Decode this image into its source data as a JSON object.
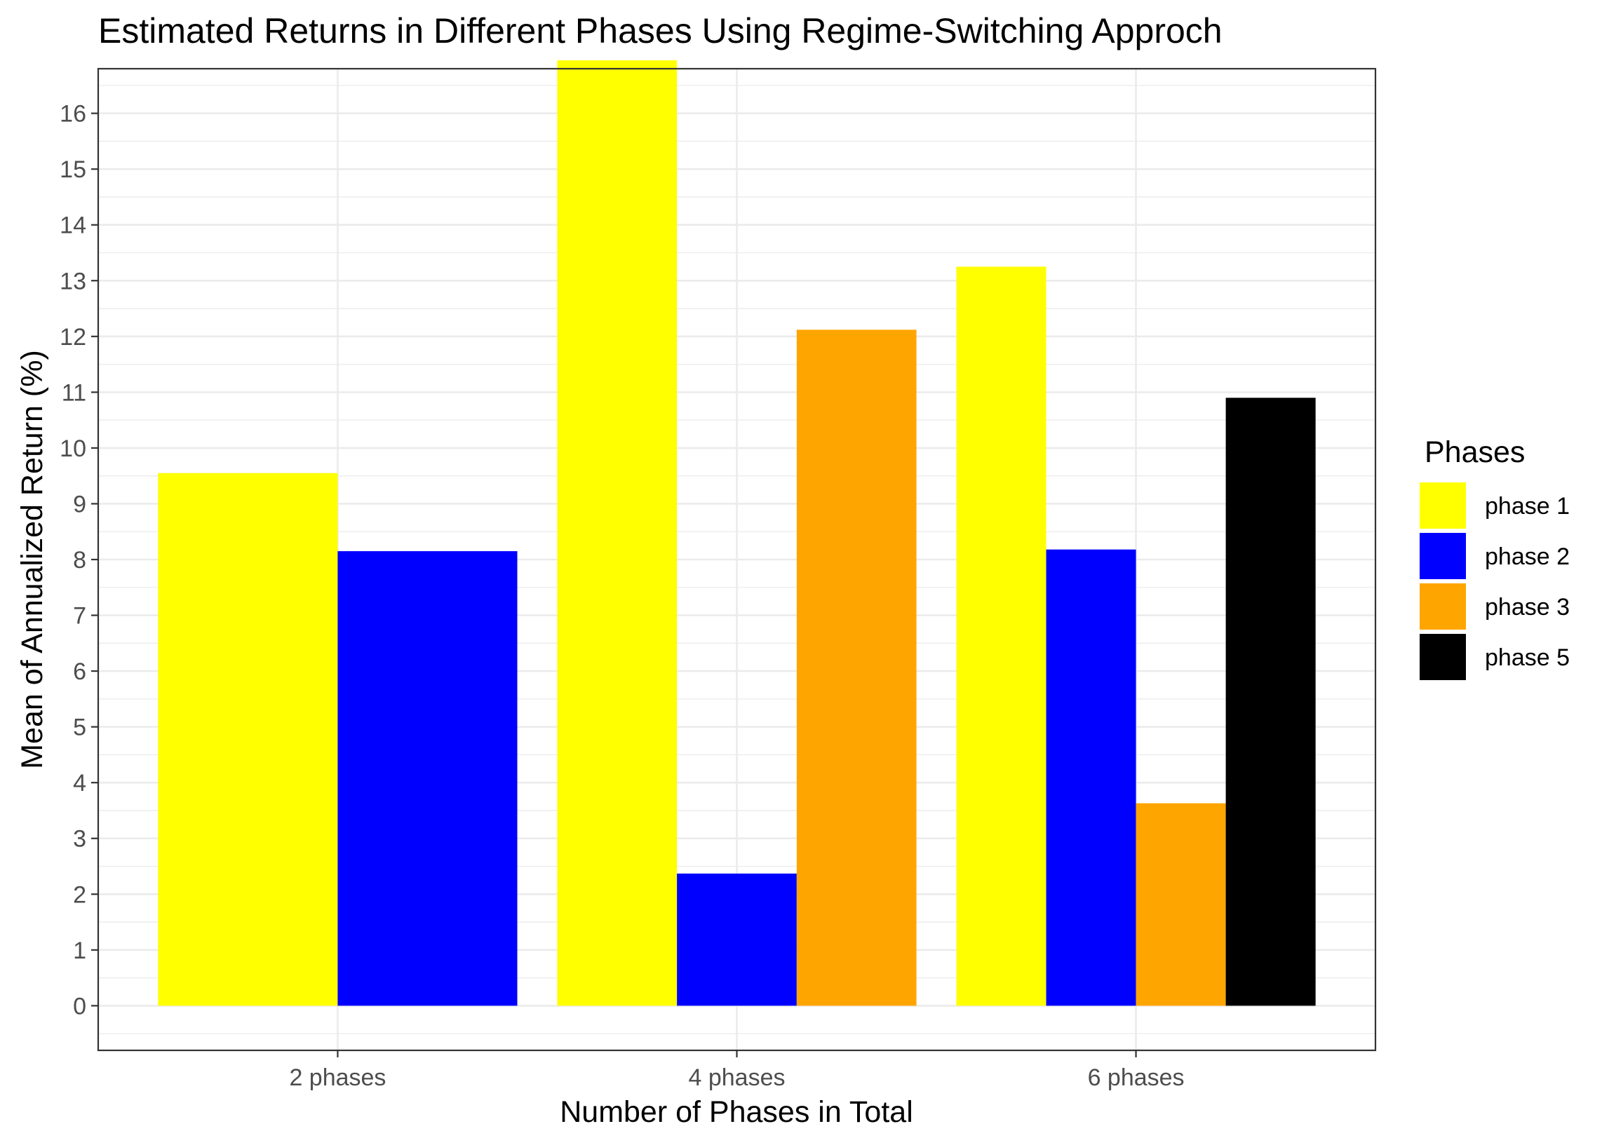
{
  "chart_data": {
    "type": "bar",
    "title": "Estimated Returns in Different Phases Using Regime-Switching Approch",
    "xlabel": "Number of Phases in Total",
    "ylabel": "Mean of Annualized Return (%)",
    "categories": [
      "2 phases",
      "4 phases",
      "6 phases"
    ],
    "ylim": [
      -0.8,
      16.8
    ],
    "yticks": [
      0,
      1,
      2,
      3,
      4,
      5,
      6,
      7,
      8,
      9,
      10,
      11,
      12,
      13,
      14,
      15,
      16
    ],
    "grid": true,
    "legend": {
      "title": "Phases",
      "position": "right"
    },
    "series": [
      {
        "name": "phase 1",
        "color": "#FFFF00",
        "values": [
          9.55,
          16.95,
          13.25
        ]
      },
      {
        "name": "phase 2",
        "color": "#0000FF",
        "values": [
          8.15,
          2.37,
          8.18
        ]
      },
      {
        "name": "phase 3",
        "color": "#FFA500",
        "values": [
          null,
          12.12,
          3.63
        ]
      },
      {
        "name": "phase 5",
        "color": "#000000",
        "values": [
          null,
          null,
          10.9
        ]
      }
    ]
  }
}
